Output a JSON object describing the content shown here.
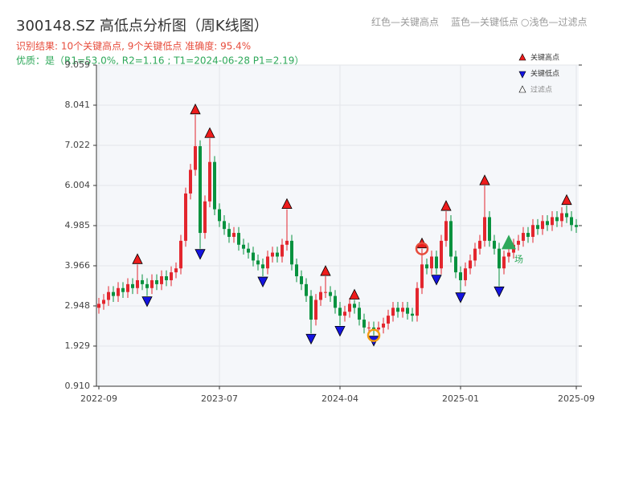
{
  "chart_data": {
    "type": "candlestick",
    "title": "300148.SZ 高低点分析图（周K线图）",
    "subtitle": "识别结果: 10个关键高点, 9个关键低点  准确度: 95.4%",
    "quality_note": "优质：是（R1=53.0%, R2=1.16 ; T1=2024-06-28 P1=2.19）",
    "header_notes": [
      "红色—关键高点",
      "蓝色—关键低点",
      "○浅色—过滤点"
    ],
    "legend": [
      "关键高点",
      "关键低点",
      "过滤点"
    ],
    "up_color": "#e3262e",
    "down_color": "#08923f",
    "grid": true,
    "ylim": [
      0.91,
      9.059
    ],
    "yticks": [
      {
        "value": 0.91,
        "label": "0.910"
      },
      1.929,
      2.948,
      3.966,
      4.985,
      6.004,
      7.022,
      8.041,
      9.059
    ],
    "categories": [
      "2022-09",
      null,
      null,
      null,
      null,
      null,
      null,
      null,
      null,
      null,
      null,
      null,
      null,
      null,
      null,
      null,
      null,
      null,
      null,
      null,
      null,
      null,
      null,
      null,
      null,
      "2023-07",
      null,
      null,
      null,
      null,
      null,
      null,
      null,
      null,
      null,
      null,
      null,
      null,
      null,
      null,
      null,
      null,
      null,
      null,
      null,
      null,
      null,
      null,
      null,
      null,
      "2024-04",
      null,
      null,
      null,
      null,
      null,
      null,
      null,
      null,
      null,
      null,
      null,
      null,
      null,
      null,
      null,
      null,
      null,
      null,
      null,
      null,
      null,
      null,
      null,
      null,
      "2025-01",
      null,
      null,
      null,
      null,
      null,
      null,
      null,
      null,
      null,
      null,
      null,
      null,
      null,
      null,
      null,
      null,
      null,
      null,
      null,
      null,
      null,
      null,
      null,
      "2025-09"
    ],
    "open": [
      2.9,
      3.0,
      3.1,
      3.3,
      3.2,
      3.4,
      3.3,
      3.5,
      3.4,
      3.6,
      3.5,
      3.4,
      3.6,
      3.5,
      3.7,
      3.6,
      3.8,
      3.9,
      4.6,
      5.8,
      6.4,
      7.0,
      4.8,
      5.6,
      6.6,
      5.4,
      5.1,
      4.9,
      4.7,
      4.8,
      4.5,
      4.4,
      4.3,
      4.1,
      4.0,
      3.9,
      4.2,
      4.3,
      4.2,
      4.5,
      4.6,
      4.0,
      3.7,
      3.5,
      3.2,
      2.6,
      3.1,
      3.3,
      3.3,
      3.2,
      2.9,
      2.7,
      2.8,
      3.0,
      2.9,
      2.6,
      2.4,
      2.4,
      2.35,
      2.4,
      2.5,
      2.7,
      2.9,
      2.8,
      2.9,
      2.75,
      2.7,
      3.4,
      4.0,
      3.9,
      4.2,
      3.9,
      4.6,
      5.1,
      4.2,
      3.8,
      3.6,
      3.9,
      4.1,
      4.4,
      4.6,
      5.2,
      4.6,
      4.4,
      3.9,
      4.2,
      4.3,
      4.5,
      4.6,
      4.8,
      4.7,
      5.0,
      4.9,
      5.1,
      5.0,
      5.2,
      5.1,
      5.3,
      5.2,
      5.0
    ],
    "high": [
      3.15,
      3.25,
      3.45,
      3.45,
      3.55,
      3.55,
      3.65,
      3.65,
      4.0,
      3.75,
      3.65,
      3.75,
      3.75,
      3.85,
      3.85,
      3.95,
      4.05,
      4.75,
      5.95,
      6.55,
      7.8,
      7.15,
      5.75,
      7.2,
      6.75,
      5.55,
      5.25,
      5.05,
      4.95,
      4.95,
      4.65,
      4.55,
      4.45,
      4.25,
      4.15,
      4.35,
      4.45,
      4.45,
      4.65,
      5.4,
      4.75,
      4.15,
      3.85,
      3.65,
      3.35,
      3.25,
      3.45,
      3.7,
      3.45,
      3.35,
      3.05,
      2.95,
      3.15,
      3.1,
      3.05,
      2.75,
      2.55,
      2.55,
      2.55,
      2.65,
      2.85,
      3.05,
      3.05,
      3.05,
      3.05,
      2.9,
      3.55,
      4.4,
      4.15,
      4.35,
      4.35,
      4.75,
      5.35,
      5.25,
      4.35,
      3.95,
      4.05,
      4.25,
      4.55,
      4.75,
      6.0,
      5.35,
      4.75,
      4.55,
      4.35,
      4.45,
      4.65,
      4.75,
      4.95,
      4.95,
      5.15,
      5.15,
      5.25,
      5.25,
      5.35,
      5.35,
      5.45,
      5.5,
      5.35,
      5.15
    ],
    "low": [
      2.75,
      2.85,
      2.95,
      3.05,
      3.05,
      3.15,
      3.15,
      3.25,
      3.25,
      3.35,
      3.2,
      3.25,
      3.35,
      3.35,
      3.45,
      3.45,
      3.65,
      3.75,
      4.45,
      5.65,
      6.25,
      4.4,
      4.65,
      5.45,
      5.25,
      4.95,
      4.75,
      4.55,
      4.55,
      4.35,
      4.25,
      4.15,
      3.95,
      3.85,
      3.7,
      3.75,
      4.05,
      4.05,
      4.05,
      4.35,
      3.85,
      3.55,
      3.35,
      3.05,
      2.25,
      2.45,
      2.95,
      3.15,
      3.05,
      2.75,
      2.45,
      2.55,
      2.65,
      2.75,
      2.45,
      2.25,
      2.25,
      2.2,
      2.2,
      2.25,
      2.35,
      2.55,
      2.65,
      2.65,
      2.6,
      2.55,
      2.55,
      3.25,
      3.75,
      3.75,
      3.75,
      3.75,
      4.45,
      4.05,
      3.65,
      3.3,
      3.45,
      3.75,
      3.95,
      4.25,
      4.45,
      4.45,
      4.25,
      3.45,
      3.75,
      4.05,
      4.15,
      4.35,
      4.45,
      4.55,
      4.55,
      4.75,
      4.75,
      4.85,
      4.85,
      4.95,
      4.95,
      5.05,
      4.85,
      4.8
    ],
    "close": [
      3.0,
      3.1,
      3.3,
      3.2,
      3.4,
      3.3,
      3.5,
      3.4,
      3.6,
      3.5,
      3.4,
      3.6,
      3.5,
      3.7,
      3.6,
      3.8,
      3.9,
      4.6,
      5.8,
      6.4,
      7.0,
      4.8,
      5.6,
      6.6,
      5.4,
      5.1,
      4.9,
      4.7,
      4.8,
      4.5,
      4.4,
      4.3,
      4.1,
      4.0,
      3.9,
      4.2,
      4.3,
      4.2,
      4.5,
      4.6,
      4.0,
      3.7,
      3.5,
      3.2,
      2.6,
      3.1,
      3.3,
      3.3,
      3.2,
      2.9,
      2.7,
      2.8,
      3.0,
      2.9,
      2.6,
      2.4,
      2.4,
      2.35,
      2.4,
      2.5,
      2.7,
      2.9,
      2.8,
      2.9,
      2.75,
      2.7,
      3.4,
      4.0,
      3.9,
      4.2,
      3.9,
      4.6,
      5.1,
      4.2,
      3.8,
      3.6,
      3.9,
      4.1,
      4.4,
      4.6,
      5.2,
      4.6,
      4.4,
      3.9,
      4.2,
      4.3,
      4.5,
      4.6,
      4.8,
      4.7,
      5.0,
      4.9,
      5.1,
      5.0,
      5.2,
      5.1,
      5.3,
      5.2,
      5.0,
      4.95
    ],
    "markers": [
      {
        "shape": "up",
        "color": "#ee1c1c",
        "x": [
          8,
          20,
          23,
          39,
          47,
          53,
          67,
          72,
          80,
          97
        ],
        "values": [
          4.0,
          7.8,
          7.2,
          5.4,
          3.7,
          3.1,
          4.4,
          5.35,
          6.0,
          5.5
        ]
      },
      {
        "shape": "down",
        "color": "#1414e0",
        "x": [
          10,
          21,
          34,
          44,
          50,
          57,
          70,
          75,
          83
        ],
        "values": [
          3.2,
          4.4,
          3.7,
          2.25,
          2.45,
          2.2,
          3.75,
          3.3,
          3.45
        ]
      }
    ],
    "annotations": [
      {
        "shape": "circle",
        "color": "#f39c12",
        "x": 57,
        "value": 2.2
      },
      {
        "shape": "circle",
        "color": "#e74c3c",
        "x": 67,
        "value": 4.4
      },
      {
        "shape": "triangle",
        "color": "#2ea85a",
        "x": 85,
        "value": 4.55,
        "text": "场"
      }
    ]
  }
}
